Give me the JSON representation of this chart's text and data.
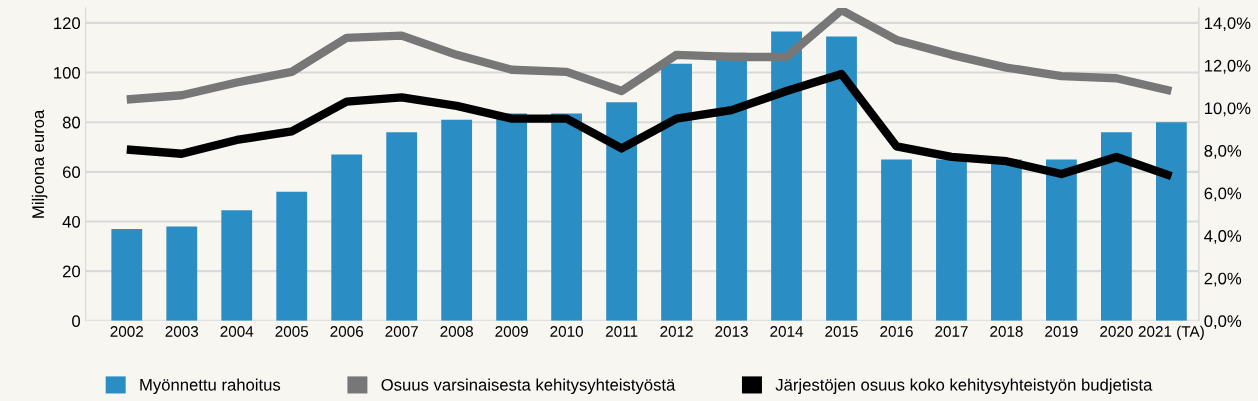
{
  "chart_data": {
    "type": "bar",
    "categories": [
      "2002",
      "2003",
      "2004",
      "2005",
      "2006",
      "2007",
      "2008",
      "2009",
      "2010",
      "2011",
      "2012",
      "2013",
      "2014",
      "2015",
      "2016",
      "2017",
      "2018",
      "2019",
      "2020",
      "2021 (TA)"
    ],
    "ylabel": "Miljoona euroa",
    "ylim": [
      0,
      126
    ],
    "yticks": [
      0,
      20,
      40,
      60,
      80,
      100,
      120
    ],
    "y2lim": [
      0,
      14.7
    ],
    "y2ticks": [
      {
        "value": 0,
        "label": "0,0%"
      },
      {
        "value": 2,
        "label": "2,0%"
      },
      {
        "value": 4,
        "label": "4,0%"
      },
      {
        "value": 6,
        "label": "6,0%"
      },
      {
        "value": 8,
        "label": "8,0%"
      },
      {
        "value": 10,
        "label": "10,0%"
      },
      {
        "value": 12,
        "label": "12,0%"
      },
      {
        "value": 14,
        "label": "14,0%"
      }
    ],
    "grid": "y",
    "legend": "bottom",
    "series": [
      {
        "name": "Myönnettu rahoitus",
        "color": "#2a8dc4",
        "values": [
          37,
          38,
          44.5,
          52,
          67,
          76,
          81,
          83.5,
          83.5,
          88,
          103.5,
          108,
          116.5,
          114.5,
          65,
          65,
          65,
          65,
          76,
          80
        ]
      },
      {
        "name": "Osuus varsinaisesta kehitysyhteistyöstä",
        "type": "line",
        "axis": "y2",
        "color": "#777777",
        "values": [
          10.4,
          10.6,
          11.2,
          11.7,
          13.3,
          13.4,
          12.5,
          11.8,
          11.7,
          10.8,
          12.5,
          12.4,
          12.4,
          14.6,
          13.2,
          12.5,
          11.9,
          11.5,
          11.4,
          10.8
        ]
      },
      {
        "name": "Järjestöjen osuus koko kehitysyhteistyön budjetista",
        "type": "line",
        "axis": "y2",
        "color": "#000000",
        "values": [
          8.05,
          7.85,
          8.5,
          8.9,
          10.3,
          10.5,
          10.1,
          9.5,
          9.5,
          8.1,
          9.5,
          9.9,
          10.8,
          11.6,
          8.2,
          7.7,
          7.5,
          6.9,
          7.7,
          6.8
        ]
      }
    ]
  }
}
